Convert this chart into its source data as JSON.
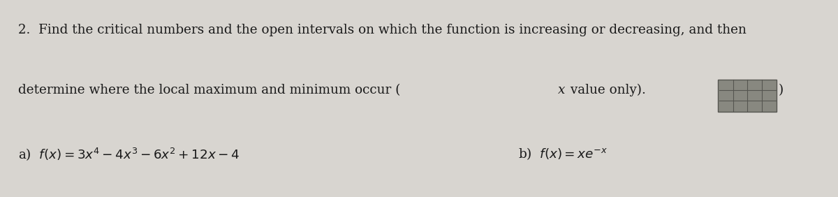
{
  "background_color": "#d8d5d0",
  "fig_width": 12.0,
  "fig_height": 2.82,
  "dpi": 100,
  "text_color": "#1a1a1a",
  "font_size_main": 13.2,
  "line1": "2.  Find the critical numbers and the open intervals on which the function is increasing or decreasing, and then",
  "line2a": "determine where the local maximum and minimum occur (",
  "line2_x": "x",
  "line2b": " value only).  ",
  "line3a_label": "a)  ",
  "line3a_formula": "$f(x) = 3x^4 - 4x^3 - 6x^2 + 12x - 4$",
  "line3b_label": "b)  ",
  "line3b_formula": "$f(x) = xe^{-x}$",
  "stamp_color": "#888880",
  "stamp_border_color": "#555550",
  "stamp_rows": 3,
  "stamp_cols": 4
}
